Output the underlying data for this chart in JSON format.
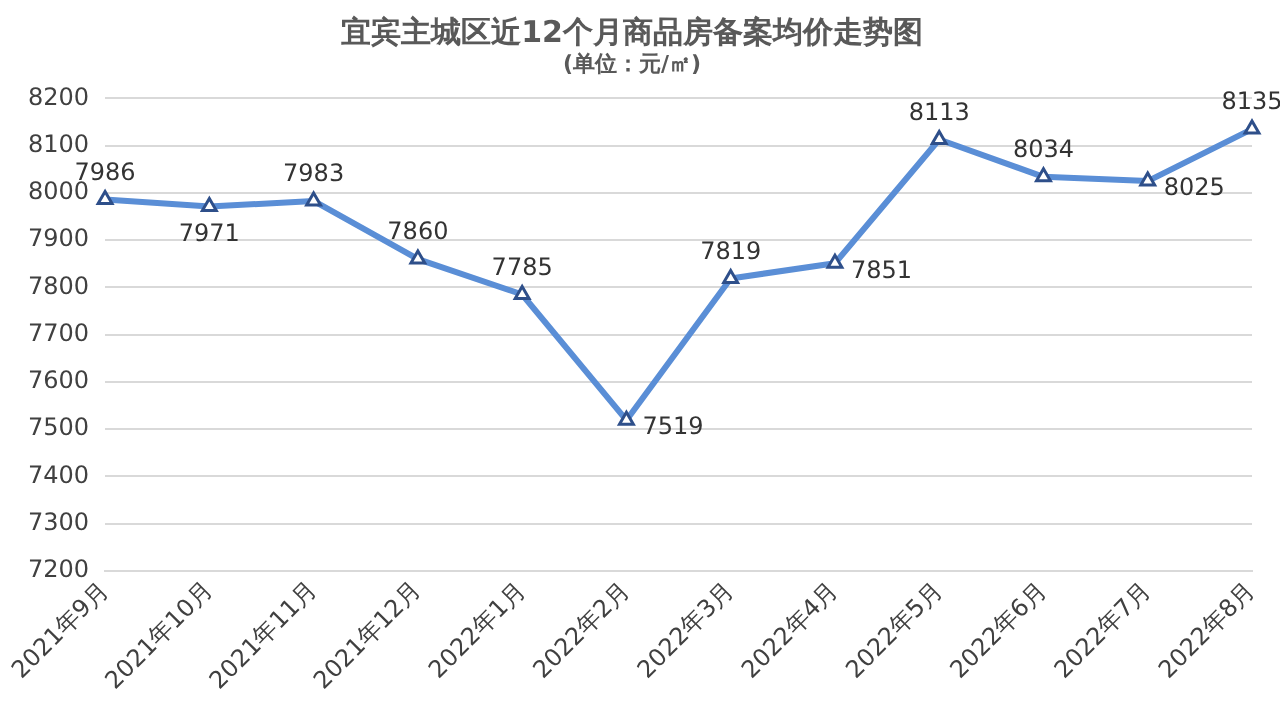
{
  "chart_data": {
    "type": "line",
    "title": "宜宾主城区近12个月商品房备案均价走势图",
    "subtitle": "(单位：元/㎡)",
    "categories": [
      "2021年9月",
      "2021年10月",
      "2021年11月",
      "2021年12月",
      "2022年1月",
      "2022年2月",
      "2022年3月",
      "2022年4月",
      "2022年5月",
      "2022年6月",
      "2022年7月",
      "2022年8月"
    ],
    "series": [
      {
        "color": "#5a8ed6",
        "values": [
          7986,
          7971,
          7983,
          7860,
          7785,
          7519,
          7819,
          7851,
          8113,
          8034,
          8025,
          8135
        ]
      }
    ],
    "ylim": [
      7200,
      8200
    ],
    "yticks": [
      7200,
      7300,
      7400,
      7500,
      7600,
      7700,
      7800,
      7900,
      8000,
      8100,
      8200
    ],
    "grid": "y",
    "marker": "triangle",
    "line_style": "solid",
    "data_labels": true,
    "legend": false
  }
}
